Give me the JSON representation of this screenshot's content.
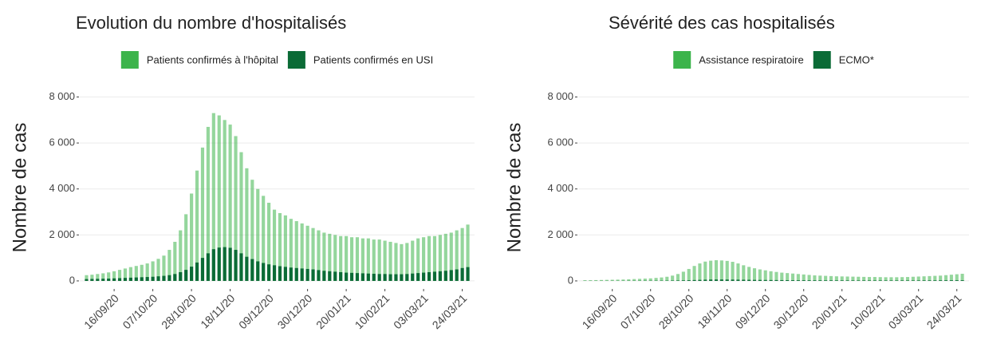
{
  "chart_data": [
    {
      "type": "bar",
      "title": "Evolution du nombre d'hospitalisés",
      "y_label": "Nombre de cas",
      "categories": [
        null,
        null,
        null,
        null,
        null,
        "16/09/20",
        null,
        null,
        null,
        null,
        null,
        null,
        "07/10/20",
        null,
        null,
        null,
        null,
        null,
        null,
        "28/10/20",
        null,
        null,
        null,
        null,
        null,
        null,
        "18/11/20",
        null,
        null,
        null,
        null,
        null,
        null,
        "09/12/20",
        null,
        null,
        null,
        null,
        null,
        null,
        "30/12/20",
        null,
        null,
        null,
        null,
        null,
        null,
        "20/01/21",
        null,
        null,
        null,
        null,
        null,
        null,
        "10/02/21",
        null,
        null,
        null,
        null,
        null,
        null,
        "03/03/21",
        null,
        null,
        null,
        null,
        null,
        null,
        "24/03/21",
        null
      ],
      "series": [
        {
          "name": "Patients confirmés à l'hôpital",
          "color": "#3cb44b",
          "values": [
            250,
            270,
            300,
            330,
            370,
            420,
            480,
            540,
            600,
            650,
            700,
            760,
            850,
            960,
            1100,
            1350,
            1700,
            2200,
            2900,
            3800,
            4800,
            5800,
            6700,
            7300,
            7200,
            7000,
            6800,
            6300,
            5600,
            4900,
            4400,
            4000,
            3700,
            3400,
            3100,
            2950,
            2850,
            2700,
            2600,
            2500,
            2400,
            2300,
            2200,
            2100,
            2050,
            2000,
            1950,
            1950,
            1900,
            1900,
            1850,
            1850,
            1800,
            1800,
            1750,
            1700,
            1650,
            1600,
            1650,
            1750,
            1850,
            1900,
            1950,
            1950,
            2000,
            2050,
            2100,
            2200,
            2300,
            2450
          ]
        },
        {
          "name": "Patients confirmés en USI",
          "color": "#0b6b36",
          "values": [
            80,
            85,
            90,
            95,
            100,
            110,
            120,
            130,
            140,
            150,
            160,
            170,
            180,
            200,
            220,
            250,
            300,
            380,
            480,
            620,
            800,
            1000,
            1200,
            1380,
            1450,
            1470,
            1440,
            1350,
            1200,
            1050,
            950,
            850,
            780,
            720,
            680,
            640,
            610,
            580,
            560,
            540,
            520,
            500,
            470,
            440,
            420,
            400,
            380,
            360,
            350,
            340,
            330,
            320,
            310,
            300,
            300,
            290,
            290,
            290,
            300,
            320,
            340,
            360,
            380,
            400,
            420,
            440,
            470,
            500,
            560,
            600
          ]
        }
      ],
      "ylim": [
        -280,
        8400
      ],
      "yticks": [
        0,
        {
          "value": 2000,
          "label": "2 000"
        },
        {
          "value": 4000,
          "label": "4 000"
        },
        {
          "value": 6000,
          "label": "6 000"
        },
        {
          "value": 8000,
          "label": "8 000"
        }
      ],
      "grid": true
    },
    {
      "type": "bar",
      "title": "Sévérité des cas hospitalisés",
      "y_label": "Nombre de cas",
      "categories": [
        null,
        null,
        null,
        null,
        null,
        "16/09/20",
        null,
        null,
        null,
        null,
        null,
        null,
        "07/10/20",
        null,
        null,
        null,
        null,
        null,
        null,
        "28/10/20",
        null,
        null,
        null,
        null,
        null,
        null,
        "18/11/20",
        null,
        null,
        null,
        null,
        null,
        null,
        "09/12/20",
        null,
        null,
        null,
        null,
        null,
        null,
        "30/12/20",
        null,
        null,
        null,
        null,
        null,
        null,
        "20/01/21",
        null,
        null,
        null,
        null,
        null,
        null,
        "10/02/21",
        null,
        null,
        null,
        null,
        null,
        null,
        "03/03/21",
        null,
        null,
        null,
        null,
        null,
        null,
        "24/03/21",
        null
      ],
      "series": [
        {
          "name": "Assistance respiratoire",
          "color": "#3cb44b",
          "values": [
            30,
            30,
            35,
            40,
            45,
            50,
            55,
            60,
            70,
            80,
            90,
            100,
            110,
            130,
            150,
            180,
            230,
            300,
            400,
            520,
            650,
            760,
            840,
            880,
            900,
            890,
            870,
            830,
            760,
            680,
            610,
            550,
            500,
            460,
            420,
            390,
            360,
            340,
            320,
            300,
            280,
            260,
            240,
            230,
            220,
            210,
            200,
            195,
            190,
            185,
            180,
            175,
            170,
            170,
            165,
            160,
            160,
            160,
            165,
            170,
            180,
            190,
            200,
            210,
            220,
            230,
            250,
            270,
            290,
            310
          ]
        },
        {
          "name": "ECMO*",
          "color": "#0b6b36",
          "values": [
            5,
            5,
            5,
            5,
            5,
            6,
            6,
            7,
            8,
            8,
            9,
            10,
            10,
            11,
            12,
            14,
            16,
            20,
            25,
            30,
            38,
            45,
            52,
            58,
            60,
            60,
            58,
            56,
            53,
            50,
            47,
            44,
            42,
            40,
            38,
            36,
            34,
            32,
            30,
            29,
            28,
            27,
            26,
            25,
            24,
            23,
            22,
            22,
            21,
            21,
            20,
            20,
            20,
            20,
            20,
            19,
            19,
            19,
            20,
            20,
            20,
            21,
            22,
            23,
            24,
            25,
            26,
            27,
            28,
            29
          ]
        }
      ],
      "ylim": [
        -280,
        8400
      ],
      "yticks": [
        0,
        {
          "value": 2000,
          "label": "2 000"
        },
        {
          "value": 4000,
          "label": "4 000"
        },
        {
          "value": 6000,
          "label": "6 000"
        },
        {
          "value": 8000,
          "label": "8 000"
        }
      ],
      "grid": true
    }
  ]
}
